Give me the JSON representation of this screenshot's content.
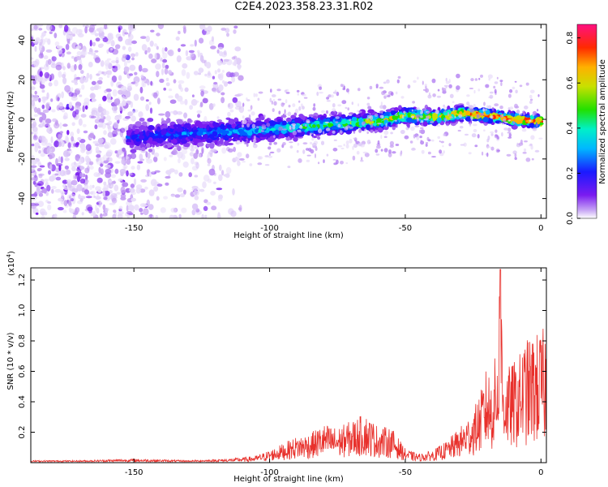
{
  "page": {
    "title": "C2E4.2023.358.23.31.R02"
  },
  "chart_data": [
    {
      "type": "heatmap",
      "title": "C2E4.2023.358.23.31.R02",
      "xlabel": "Height of straight line (km)",
      "ylabel": "Frequency (Hz)",
      "xlim": [
        -188,
        2
      ],
      "ylim": [
        -50,
        48
      ],
      "x_ticks": [
        -150,
        -100,
        -50,
        0
      ],
      "y_ticks": [
        -40,
        -20,
        0,
        20,
        40
      ],
      "colorbar": {
        "label": "Normalized spectral amplitude",
        "range": [
          0,
          0.86
        ],
        "ticks": [
          0.0,
          0.2,
          0.4,
          0.6,
          0.8
        ],
        "colormap": "rainbow (violet-blue-cyan-green-yellow-red-magenta)"
      },
      "ridge": {
        "x": [
          -150,
          -130,
          -110,
          -100,
          -90,
          -80,
          -70,
          -60,
          -50,
          -40,
          -30,
          -20,
          -10,
          0
        ],
        "freq": [
          -9,
          -7,
          -6,
          -5,
          -4,
          -3,
          -2,
          -1,
          2,
          1,
          3,
          2,
          0,
          -1
        ]
      },
      "noise_region_x": [
        -188,
        -110
      ],
      "grid": false
    },
    {
      "type": "line",
      "title": "",
      "xlabel": "Height of straight line (km)",
      "ylabel": "SNR (10 * v/v)",
      "y_multiplier": "(x10",
      "y_multiplier_exp": "4",
      "y_multiplier_close": ")",
      "xlim": [
        -188,
        2
      ],
      "ylim": [
        0,
        1.28
      ],
      "x_ticks": [
        -150,
        -100,
        -50,
        0
      ],
      "y_ticks": [
        0.2,
        0.4,
        0.6,
        0.8,
        1.0,
        1.2
      ],
      "color": "#e8312c",
      "series": [
        {
          "x": [
            -188,
            -170,
            -150,
            -130,
            -115,
            -105,
            -100,
            -95,
            -90,
            -85,
            -80,
            -75,
            -70,
            -65,
            -60,
            -55,
            -50,
            -45,
            -40,
            -35,
            -30,
            -25,
            -22,
            -20,
            -18,
            -16,
            -15,
            -14,
            -12,
            -10,
            -8,
            -6,
            -4,
            -2,
            0,
            2
          ],
          "y": [
            0.01,
            0.01,
            0.02,
            0.01,
            0.02,
            0.04,
            0.07,
            0.11,
            0.15,
            0.17,
            0.22,
            0.2,
            0.24,
            0.28,
            0.21,
            0.2,
            0.08,
            0.05,
            0.07,
            0.12,
            0.2,
            0.3,
            0.42,
            0.55,
            0.5,
            0.7,
            1.27,
            0.6,
            0.55,
            0.58,
            0.62,
            0.7,
            0.72,
            0.74,
            0.76,
            0.78
          ]
        }
      ]
    }
  ]
}
